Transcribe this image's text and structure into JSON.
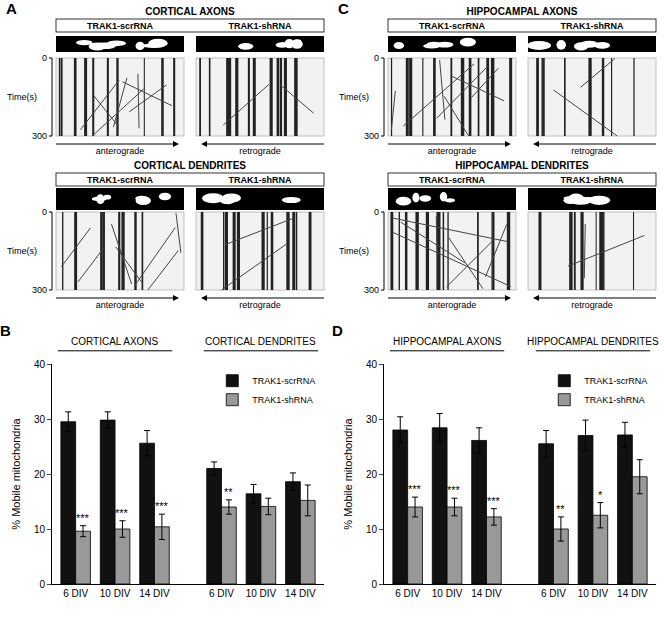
{
  "image_panels": [
    {
      "letter": "A",
      "sections": [
        {
          "title": "CORTICAL AXONS",
          "conditions": [
            "TRAK1-scrRNA",
            "TRAK1-shRNA"
          ],
          "time_axis_label": "Time(s)",
          "time_ticks": [
            0,
            300
          ],
          "directions": [
            "anterograde",
            "retrograde"
          ]
        },
        {
          "title": "CORTICAL DENDRITES",
          "conditions": [
            "TRAK1-scrRNA",
            "TRAK1-shRNA"
          ],
          "time_axis_label": "Time(s)",
          "time_ticks": [
            0,
            300
          ],
          "directions": [
            "anterograde",
            "retrograde"
          ]
        }
      ]
    },
    {
      "letter": "C",
      "sections": [
        {
          "title": "HIPPOCAMPAL AXONS",
          "conditions": [
            "TRAK1-scrRNA",
            "TRAK1-shRNA"
          ],
          "time_axis_label": "Time(s)",
          "time_ticks": [
            0,
            300
          ],
          "directions": [
            "anterograde",
            "retrograde"
          ]
        },
        {
          "title": "HIPPOCAMPAL DENDRITES",
          "conditions": [
            "TRAK1-scrRNA",
            "TRAK1-shRNA"
          ],
          "time_axis_label": "Time(s)",
          "time_ticks": [
            0,
            300
          ],
          "directions": [
            "anterograde",
            "retrograde"
          ]
        }
      ]
    }
  ],
  "chart_data": [
    {
      "type": "bar",
      "panel": "B",
      "ylabel": "% Mobile mitochondria",
      "groups": [
        {
          "label": "CORTICAL AXONS",
          "categories": [
            "6 DIV",
            "10 DIV",
            "14 DIV"
          ]
        },
        {
          "label": "CORTICAL DENDRITES",
          "categories": [
            "6 DIV",
            "10 DIV",
            "14 DIV"
          ]
        }
      ],
      "series": [
        {
          "name": "TRAK1-scrRNA",
          "color": "#111111",
          "values": [
            29.5,
            29.8,
            25.6,
            21.0,
            16.4,
            18.6
          ],
          "error": [
            1.8,
            1.5,
            2.3,
            1.2,
            1.7,
            1.6
          ]
        },
        {
          "name": "TRAK1-shRNA",
          "color": "#999999",
          "values": [
            9.6,
            10.0,
            10.4,
            14.0,
            14.1,
            15.2
          ],
          "error": [
            1.0,
            1.5,
            2.3,
            1.3,
            1.5,
            2.8
          ],
          "significance": [
            "***",
            "***",
            "***",
            "**",
            null,
            null
          ]
        }
      ],
      "ylim": [
        0,
        40
      ],
      "yticks": [
        0,
        10,
        20,
        30,
        40
      ],
      "legend": "top right",
      "grid": false
    },
    {
      "type": "bar",
      "panel": "D",
      "ylabel": "% Mobile mitochondria",
      "groups": [
        {
          "label": "HIPPOCAMPAL AXONS",
          "categories": [
            "6 DIV",
            "10 DIV",
            "14 DIV"
          ]
        },
        {
          "label": "HIPPOCAMPAL DENDRITES",
          "categories": [
            "6 DIV",
            "10 DIV",
            "14 DIV"
          ]
        }
      ],
      "series": [
        {
          "name": "TRAK1-scrRNA",
          "color": "#111111",
          "values": [
            28.0,
            28.4,
            26.1,
            25.5,
            27.0,
            27.1
          ],
          "error": [
            2.4,
            2.6,
            2.3,
            2.4,
            2.8,
            2.3
          ]
        },
        {
          "name": "TRAK1-shRNA",
          "color": "#999999",
          "values": [
            14.0,
            14.0,
            12.2,
            10.0,
            12.5,
            19.5
          ],
          "error": [
            1.8,
            1.6,
            1.5,
            2.2,
            2.3,
            3.1
          ],
          "significance": [
            "***",
            "***",
            "***",
            "**",
            "*",
            null
          ]
        }
      ],
      "ylim": [
        0,
        40
      ],
      "yticks": [
        0,
        10,
        20,
        30,
        40
      ],
      "legend": "top right",
      "grid": false
    }
  ]
}
